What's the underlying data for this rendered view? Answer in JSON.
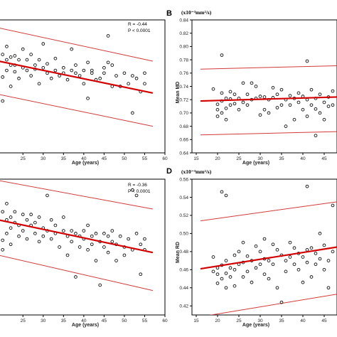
{
  "panels": [
    {
      "label": "",
      "unit": "",
      "ylabel": "",
      "xlabel": "Age (years)",
      "xticks": [
        "25",
        "30",
        "35",
        "40",
        "45",
        "50",
        "55",
        "60"
      ],
      "yticks": [],
      "stat_r": "R = -0.44",
      "stat_p": "P < 0.0001"
    },
    {
      "label": "B",
      "unit": "(x10⁻³mm²/s)",
      "ylabel": "Mean MD",
      "xlabel": "Age (years)",
      "xticks": [
        "15",
        "20",
        "25",
        "30",
        "35",
        "40",
        "45"
      ],
      "yticks": [
        "0.84",
        "0.82",
        "0.80",
        "0.78",
        "0.76",
        "0.74",
        "0.72",
        "0.70",
        "0.68",
        "0.66",
        "0.64"
      ],
      "stat_r": "",
      "stat_p": ""
    },
    {
      "label": "",
      "unit": "",
      "ylabel": "",
      "xlabel": "Age (years)",
      "xticks": [
        "25",
        "30",
        "35",
        "40",
        "45",
        "50",
        "55",
        "60"
      ],
      "yticks": [],
      "stat_r": "R = -0.36",
      "stat_p": "P < 0.0001"
    },
    {
      "label": "D",
      "unit": "(x10⁻³mm²/s)",
      "ylabel": "Mean RD",
      "xlabel": "Age (years)",
      "xticks": [
        "15",
        "20",
        "25",
        "30",
        "35",
        "40",
        "45"
      ],
      "yticks": [
        "0.56",
        "0.54",
        "0.52",
        "0.50",
        "0.48",
        "0.46",
        "0.44",
        "0.42"
      ],
      "stat_r": "",
      "stat_p": ""
    }
  ],
  "chart_data": [
    {
      "type": "scatter",
      "title": "",
      "xlabel": "Age (years)",
      "ylabel": "",
      "xlim": [
        19,
        60
      ],
      "ylim": [
        0,
        100
      ],
      "fit": {
        "x": [
          19,
          57
        ],
        "y": [
          69,
          45
        ]
      },
      "ci_upper": {
        "x": [
          19,
          57
        ],
        "y": [
          94,
          69
        ]
      },
      "ci_lower": {
        "x": [
          19,
          57
        ],
        "y": [
          44,
          20
        ]
      },
      "points": [
        [
          20,
          74
        ],
        [
          20,
          57
        ],
        [
          20,
          39
        ],
        [
          21,
          70
        ],
        [
          21,
          62
        ],
        [
          21,
          80
        ],
        [
          22,
          66
        ],
        [
          22,
          72
        ],
        [
          22,
          50
        ],
        [
          23,
          73
        ],
        [
          23,
          66
        ],
        [
          23,
          61
        ],
        [
          24,
          70
        ],
        [
          24,
          56
        ],
        [
          25,
          78
        ],
        [
          25,
          64
        ],
        [
          26,
          62
        ],
        [
          26,
          70
        ],
        [
          27,
          74
        ],
        [
          27,
          58
        ],
        [
          28,
          63
        ],
        [
          28,
          66
        ],
        [
          29,
          52
        ],
        [
          29,
          70
        ],
        [
          30,
          64
        ],
        [
          30,
          82
        ],
        [
          31,
          60
        ],
        [
          31,
          67
        ],
        [
          32,
          56
        ],
        [
          33,
          62
        ],
        [
          33,
          71
        ],
        [
          34,
          58
        ],
        [
          35,
          60
        ],
        [
          35,
          64
        ],
        [
          36,
          55
        ],
        [
          37,
          62
        ],
        [
          37,
          78
        ],
        [
          38,
          66
        ],
        [
          38,
          60
        ],
        [
          39,
          58
        ],
        [
          40,
          62
        ],
        [
          40,
          52
        ],
        [
          41,
          68
        ],
        [
          41,
          41
        ],
        [
          42,
          60
        ],
        [
          42,
          62
        ],
        [
          43,
          55
        ],
        [
          44,
          56
        ],
        [
          45,
          64
        ],
        [
          45,
          60
        ],
        [
          46,
          88
        ],
        [
          46,
          68
        ],
        [
          47,
          66
        ],
        [
          47,
          50
        ],
        [
          48,
          58
        ],
        [
          49,
          50
        ],
        [
          50,
          60
        ],
        [
          51,
          52
        ],
        [
          52,
          58
        ],
        [
          52,
          30
        ],
        [
          53,
          56
        ],
        [
          54,
          46
        ],
        [
          55,
          52
        ],
        [
          55,
          60
        ]
      ]
    },
    {
      "type": "scatter",
      "title": "",
      "xlabel": "Age (years)",
      "ylabel": "Mean MD",
      "xlim": [
        14,
        48
      ],
      "ylim": [
        0.64,
        0.84
      ],
      "fit": {
        "x": [
          16,
          48
        ],
        "y": [
          0.718,
          0.724
        ]
      },
      "ci_upper": {
        "x": [
          16,
          48
        ],
        "y": [
          0.766,
          0.771
        ]
      },
      "ci_lower": {
        "x": [
          16,
          48
        ],
        "y": [
          0.667,
          0.672
        ]
      },
      "points": [
        [
          19,
          0.736
        ],
        [
          20,
          0.713
        ],
        [
          20,
          0.695
        ],
        [
          20,
          0.705
        ],
        [
          21,
          0.787
        ],
        [
          21,
          0.718
        ],
        [
          21,
          0.73
        ],
        [
          21,
          0.7
        ],
        [
          22,
          0.722
        ],
        [
          22,
          0.707
        ],
        [
          22,
          0.69
        ],
        [
          23,
          0.721
        ],
        [
          23,
          0.712
        ],
        [
          23,
          0.732
        ],
        [
          24,
          0.728
        ],
        [
          24,
          0.714
        ],
        [
          25,
          0.722
        ],
        [
          25,
          0.705
        ],
        [
          26,
          0.745
        ],
        [
          26,
          0.716
        ],
        [
          27,
          0.728
        ],
        [
          27,
          0.712
        ],
        [
          28,
          0.745
        ],
        [
          28,
          0.72
        ],
        [
          29,
          0.74
        ],
        [
          29,
          0.722
        ],
        [
          30,
          0.725
        ],
        [
          30,
          0.697
        ],
        [
          31,
          0.705
        ],
        [
          31,
          0.724
        ],
        [
          32,
          0.72
        ],
        [
          32,
          0.7
        ],
        [
          33,
          0.738
        ],
        [
          33,
          0.723
        ],
        [
          34,
          0.708
        ],
        [
          34,
          0.728
        ],
        [
          35,
          0.735
        ],
        [
          35,
          0.712
        ],
        [
          36,
          0.72
        ],
        [
          36,
          0.68
        ],
        [
          37,
          0.726
        ],
        [
          37,
          0.712
        ],
        [
          38,
          0.722
        ],
        [
          38,
          0.69
        ],
        [
          39,
          0.73
        ],
        [
          39,
          0.716
        ],
        [
          40,
          0.725
        ],
        [
          40,
          0.705
        ],
        [
          41,
          0.778
        ],
        [
          41,
          0.72
        ],
        [
          41,
          0.695
        ],
        [
          42,
          0.735
        ],
        [
          42,
          0.712
        ],
        [
          43,
          0.722
        ],
        [
          43,
          0.706
        ],
        [
          43,
          0.666
        ],
        [
          44,
          0.7
        ],
        [
          44,
          0.728
        ],
        [
          45,
          0.716
        ],
        [
          45,
          0.69
        ],
        [
          46,
          0.724
        ],
        [
          46,
          0.71
        ],
        [
          47,
          0.712
        ],
        [
          47,
          0.733
        ]
      ]
    },
    {
      "type": "scatter",
      "title": "",
      "xlabel": "Age (years)",
      "ylabel": "",
      "xlim": [
        19,
        60
      ],
      "ylim": [
        0,
        100
      ],
      "fit": {
        "x": [
          19,
          57
        ],
        "y": [
          70,
          46
        ]
      },
      "ci_upper": {
        "x": [
          19,
          57
        ],
        "y": [
          99,
          78
        ]
      },
      "ci_lower": {
        "x": [
          19,
          57
        ],
        "y": [
          44,
          18
        ]
      },
      "points": [
        [
          20,
          76
        ],
        [
          20,
          55
        ],
        [
          20,
          48
        ],
        [
          21,
          82
        ],
        [
          21,
          60
        ],
        [
          21,
          70
        ],
        [
          22,
          72
        ],
        [
          22,
          64
        ],
        [
          22,
          52
        ],
        [
          23,
          76
        ],
        [
          23,
          68
        ],
        [
          24,
          66
        ],
        [
          24,
          58
        ],
        [
          25,
          74
        ],
        [
          25,
          62
        ],
        [
          26,
          70
        ],
        [
          26,
          56
        ],
        [
          27,
          66
        ],
        [
          27,
          74
        ],
        [
          28,
          60
        ],
        [
          28,
          68
        ],
        [
          29,
          54
        ],
        [
          29,
          72
        ],
        [
          30,
          64
        ],
        [
          30,
          58
        ],
        [
          31,
          88
        ],
        [
          31,
          62
        ],
        [
          32,
          70
        ],
        [
          32,
          56
        ],
        [
          33,
          60
        ],
        [
          33,
          66
        ],
        [
          34,
          50
        ],
        [
          35,
          62
        ],
        [
          35,
          72
        ],
        [
          36,
          58
        ],
        [
          36,
          44
        ],
        [
          37,
          62
        ],
        [
          37,
          54
        ],
        [
          38,
          28
        ],
        [
          38,
          60
        ],
        [
          39,
          58
        ],
        [
          39,
          50
        ],
        [
          40,
          62
        ],
        [
          40,
          56
        ],
        [
          41,
          48
        ],
        [
          41,
          66
        ],
        [
          42,
          58
        ],
        [
          42,
          52
        ],
        [
          43,
          60
        ],
        [
          43,
          40
        ],
        [
          44,
          54
        ],
        [
          44,
          22
        ],
        [
          45,
          60
        ],
        [
          45,
          50
        ],
        [
          46,
          58
        ],
        [
          46,
          46
        ],
        [
          47,
          62
        ],
        [
          47,
          54
        ],
        [
          48,
          52
        ],
        [
          48,
          40
        ],
        [
          49,
          58
        ],
        [
          50,
          50
        ],
        [
          50,
          44
        ],
        [
          51,
          56
        ],
        [
          52,
          92
        ],
        [
          52,
          48
        ],
        [
          53,
          88
        ],
        [
          53,
          60
        ],
        [
          54,
          52
        ],
        [
          54,
          30
        ],
        [
          55,
          48
        ],
        [
          55,
          56
        ]
      ]
    },
    {
      "type": "scatter",
      "title": "",
      "xlabel": "Age (years)",
      "ylabel": "Mean RD",
      "xlim": [
        14,
        48
      ],
      "ylim": [
        0.41,
        0.56
      ],
      "fit": {
        "x": [
          16,
          48
        ],
        "y": [
          0.461,
          0.485
        ]
      },
      "ci_upper": {
        "x": [
          16,
          48
        ],
        "y": [
          0.514,
          0.535
        ]
      },
      "ci_lower": {
        "x": [
          16,
          48
        ],
        "y": [
          0.408,
          0.433
        ]
      },
      "points": [
        [
          19,
          0.474
        ],
        [
          19,
          0.458
        ],
        [
          20,
          0.462
        ],
        [
          20,
          0.455
        ],
        [
          20,
          0.445
        ],
        [
          21,
          0.546
        ],
        [
          21,
          0.465
        ],
        [
          21,
          0.45
        ],
        [
          22,
          0.542
        ],
        [
          22,
          0.47
        ],
        [
          22,
          0.456
        ],
        [
          22,
          0.44
        ],
        [
          23,
          0.462
        ],
        [
          23,
          0.452
        ],
        [
          24,
          0.476
        ],
        [
          24,
          0.46
        ],
        [
          24,
          0.442
        ],
        [
          25,
          0.48
        ],
        [
          25,
          0.466
        ],
        [
          26,
          0.49
        ],
        [
          26,
          0.468
        ],
        [
          26,
          0.452
        ],
        [
          27,
          0.475
        ],
        [
          27,
          0.458
        ],
        [
          28,
          0.47
        ],
        [
          28,
          0.446
        ],
        [
          29,
          0.486
        ],
        [
          29,
          0.462
        ],
        [
          30,
          0.48
        ],
        [
          30,
          0.466
        ],
        [
          31,
          0.494
        ],
        [
          31,
          0.472
        ],
        [
          31,
          0.455
        ],
        [
          32,
          0.47
        ],
        [
          32,
          0.45
        ],
        [
          33,
          0.488
        ],
        [
          33,
          0.466
        ],
        [
          34,
          0.482
        ],
        [
          34,
          0.44
        ],
        [
          35,
          0.476
        ],
        [
          35,
          0.424
        ],
        [
          36,
          0.47
        ],
        [
          36,
          0.458
        ],
        [
          37,
          0.49
        ],
        [
          37,
          0.474
        ],
        [
          38,
          0.466
        ],
        [
          38,
          0.484
        ],
        [
          39,
          0.478
        ],
        [
          39,
          0.46
        ],
        [
          40,
          0.474
        ],
        [
          40,
          0.446
        ],
        [
          41,
          0.552
        ],
        [
          41,
          0.482
        ],
        [
          41,
          0.468
        ],
        [
          42,
          0.484
        ],
        [
          42,
          0.452
        ],
        [
          43,
          0.478
        ],
        [
          43,
          0.466
        ],
        [
          44,
          0.5
        ],
        [
          44,
          0.472
        ],
        [
          45,
          0.487
        ],
        [
          45,
          0.46
        ],
        [
          46,
          0.47
        ],
        [
          46,
          0.44
        ],
        [
          47,
          0.531
        ],
        [
          47,
          0.48
        ]
      ]
    }
  ]
}
